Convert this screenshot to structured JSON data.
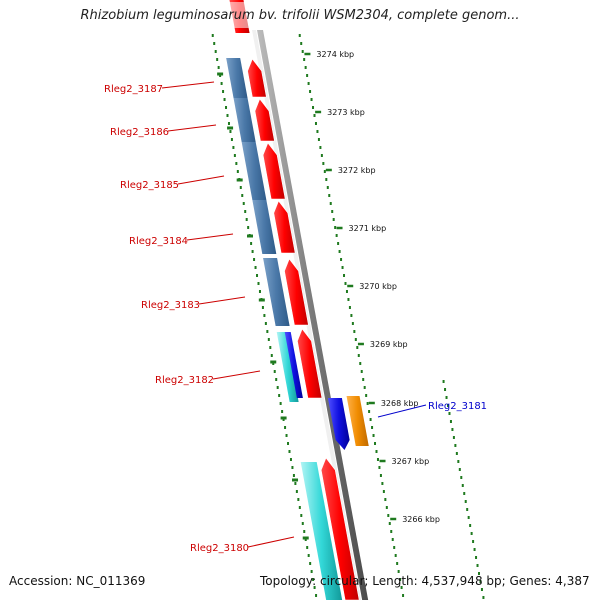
{
  "title": "Rhizobium leguminosarum bv. trifolii WSM2304, complete genom...",
  "footer": {
    "accession": "Accession: NC_011369",
    "summary": "Topology: circular; Length: 4,537,948 bp; Genes: 4,387"
  },
  "scale_ticks": [
    {
      "label": "3274 kbp",
      "kbp": 3274
    },
    {
      "label": "3273 kbp",
      "kbp": 3273
    },
    {
      "label": "3272 kbp",
      "kbp": 3272
    },
    {
      "label": "3271 kbp",
      "kbp": 3271
    },
    {
      "label": "3270 kbp",
      "kbp": 3270
    },
    {
      "label": "3269 kbp",
      "kbp": 3269
    },
    {
      "label": "3268 kbp",
      "kbp": 3268
    },
    {
      "label": "3267 kbp",
      "kbp": 3267
    },
    {
      "label": "3266 kbp",
      "kbp": 3266
    }
  ],
  "genes": [
    {
      "name": "Rleg2_3187",
      "strand": "forward",
      "label_color": "#cc0000"
    },
    {
      "name": "Rleg2_3186",
      "strand": "forward",
      "label_color": "#cc0000"
    },
    {
      "name": "Rleg2_3185",
      "strand": "forward",
      "label_color": "#cc0000"
    },
    {
      "name": "Rleg2_3184",
      "strand": "forward",
      "label_color": "#cc0000"
    },
    {
      "name": "Rleg2_3183",
      "strand": "forward",
      "label_color": "#cc0000"
    },
    {
      "name": "Rleg2_3182",
      "strand": "forward",
      "label_color": "#cc0000"
    },
    {
      "name": "Rleg2_3181",
      "strand": "reverse",
      "label_color": "#0000cc"
    },
    {
      "name": "Rleg2_3180",
      "strand": "forward",
      "label_color": "#cc0000"
    }
  ],
  "colors": {
    "forward_gene": "#e8000a",
    "reverse_gene": "#1a1acc",
    "cog_steelblue": "#4a78a8",
    "cog_cyan": "#22cccc",
    "cog_orange": "#f08c00",
    "backbone": "#8a8a8a",
    "tick": "#1f7a1f"
  }
}
